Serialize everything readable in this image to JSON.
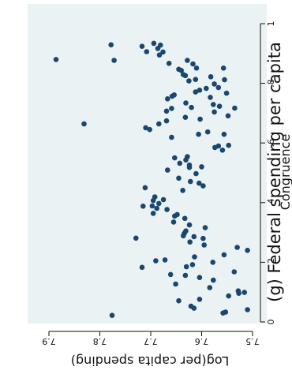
{
  "colors": {
    "page_bg": "#ffffff",
    "plot_bg": "#eaf2f3",
    "marker": "#1a476f",
    "axis": "#111111"
  },
  "chart_data": {
    "type": "scatter",
    "orientation": "rotated-90-clockwise",
    "title": "(g) Federal spending per capita",
    "xlabel": "Congruence",
    "ylabel": "Log(per capita spending)",
    "xlim": [
      0,
      1
    ],
    "ylim": [
      7.5,
      7.9
    ],
    "xticks": [
      {
        "v": 0,
        "label": "0"
      },
      {
        "v": 0.2,
        "label": ".2"
      },
      {
        "v": 0.4,
        "label": ".4"
      },
      {
        "v": 0.6,
        "label": ".6"
      },
      {
        "v": 0.8,
        "label": ".8"
      },
      {
        "v": 1,
        "label": "1"
      }
    ],
    "yticks": [
      {
        "v": 7.5,
        "label": "7.5"
      },
      {
        "v": 7.6,
        "label": "7.6"
      },
      {
        "v": 7.7,
        "label": "7.7"
      },
      {
        "v": 7.8,
        "label": "7.8"
      },
      {
        "v": 7.9,
        "label": "7.9"
      }
    ],
    "grid": false,
    "legend": "none",
    "points": [
      [
        0.88,
        7.886
      ],
      [
        0.664,
        7.831
      ],
      [
        0.022,
        7.776
      ],
      [
        0.929,
        7.778
      ],
      [
        0.877,
        7.772
      ],
      [
        0.924,
        7.717
      ],
      [
        0.906,
        7.708
      ],
      [
        0.934,
        7.694
      ],
      [
        0.917,
        7.686
      ],
      [
        0.895,
        7.683
      ],
      [
        0.905,
        7.676
      ],
      [
        0.928,
        7.681
      ],
      [
        0.867,
        7.664
      ],
      [
        0.877,
        7.628
      ],
      [
        0.851,
        7.61
      ],
      [
        0.847,
        7.645
      ],
      [
        0.843,
        7.64
      ],
      [
        0.865,
        7.617
      ],
      [
        0.829,
        7.636
      ],
      [
        0.826,
        7.632
      ],
      [
        0.851,
        7.557
      ],
      [
        0.812,
        7.555
      ],
      [
        0.798,
        7.575
      ],
      [
        0.786,
        7.567
      ],
      [
        0.813,
        7.612
      ],
      [
        0.808,
        7.625
      ],
      [
        0.822,
        7.582
      ],
      [
        0.748,
        7.667
      ],
      [
        0.757,
        7.658
      ],
      [
        0.761,
        7.654
      ],
      [
        0.783,
        7.591
      ],
      [
        0.777,
        7.604
      ],
      [
        0.771,
        7.612
      ],
      [
        0.767,
        7.551
      ],
      [
        0.753,
        7.583
      ],
      [
        0.734,
        7.631
      ],
      [
        0.717,
        7.535
      ],
      [
        0.723,
        7.565
      ],
      [
        0.729,
        7.577
      ],
      [
        0.719,
        7.62
      ],
      [
        0.716,
        7.659
      ],
      [
        0.707,
        7.669
      ],
      [
        0.704,
        7.575
      ],
      [
        0.691,
        7.548
      ],
      [
        0.68,
        7.603
      ],
      [
        0.686,
        7.632
      ],
      [
        0.674,
        7.669
      ],
      [
        0.664,
        7.684
      ],
      [
        0.651,
        7.71
      ],
      [
        0.645,
        7.702
      ],
      [
        0.637,
        7.588
      ],
      [
        0.629,
        7.606
      ],
      [
        0.629,
        7.556
      ],
      [
        0.619,
        7.659
      ],
      [
        0.592,
        7.547
      ],
      [
        0.59,
        7.567
      ],
      [
        0.585,
        7.574
      ],
      [
        0.576,
        7.559
      ],
      [
        0.554,
        7.628
      ],
      [
        0.55,
        7.653
      ],
      [
        0.543,
        7.631
      ],
      [
        0.532,
        7.643
      ],
      [
        0.526,
        7.624
      ],
      [
        0.518,
        7.624
      ],
      [
        0.52,
        7.6
      ],
      [
        0.509,
        7.667
      ],
      [
        0.497,
        7.611
      ],
      [
        0.482,
        7.645
      ],
      [
        0.471,
        7.622
      ],
      [
        0.465,
        7.605
      ],
      [
        0.456,
        7.597
      ],
      [
        0.441,
        7.637
      ],
      [
        0.45,
        7.711
      ],
      [
        0.419,
        7.692
      ],
      [
        0.41,
        7.675
      ],
      [
        0.407,
        7.695
      ],
      [
        0.397,
        7.684
      ],
      [
        0.389,
        7.697
      ],
      [
        0.388,
        7.715
      ],
      [
        0.381,
        7.688
      ],
      [
        0.377,
        7.668
      ],
      [
        0.364,
        7.695
      ],
      [
        0.36,
        7.648
      ],
      [
        0.355,
        7.653
      ],
      [
        0.347,
        7.633
      ],
      [
        0.335,
        7.655
      ],
      [
        0.325,
        7.624
      ],
      [
        0.316,
        7.593
      ],
      [
        0.305,
        7.631
      ],
      [
        0.297,
        7.634
      ],
      [
        0.289,
        7.636
      ],
      [
        0.28,
        7.597
      ],
      [
        0.286,
        7.615
      ],
      [
        0.268,
        7.623
      ],
      [
        0.281,
        7.729
      ],
      [
        0.25,
        7.53
      ],
      [
        0.258,
        7.595
      ],
      [
        0.24,
        7.51
      ],
      [
        0.225,
        7.556
      ],
      [
        0.218,
        7.614
      ],
      [
        0.208,
        7.672
      ],
      [
        0.205,
        7.69
      ],
      [
        0.2,
        7.578
      ],
      [
        0.192,
        7.618
      ],
      [
        0.185,
        7.63
      ],
      [
        0.183,
        7.717
      ],
      [
        0.168,
        7.536
      ],
      [
        0.159,
        7.661
      ],
      [
        0.156,
        7.632
      ],
      [
        0.149,
        7.604
      ],
      [
        0.14,
        7.577
      ],
      [
        0.127,
        7.651
      ],
      [
        0.115,
        7.584
      ],
      [
        0.104,
        7.528
      ],
      [
        0.099,
        7.516
      ],
      [
        0.096,
        7.527
      ],
      [
        0.087,
        7.547
      ],
      [
        0.076,
        7.604
      ],
      [
        0.071,
        7.645
      ],
      [
        0.053,
        7.621
      ],
      [
        0.046,
        7.615
      ],
      [
        0.041,
        7.51
      ],
      [
        0.033,
        7.553
      ],
      [
        0.03,
        7.558
      ]
    ]
  }
}
